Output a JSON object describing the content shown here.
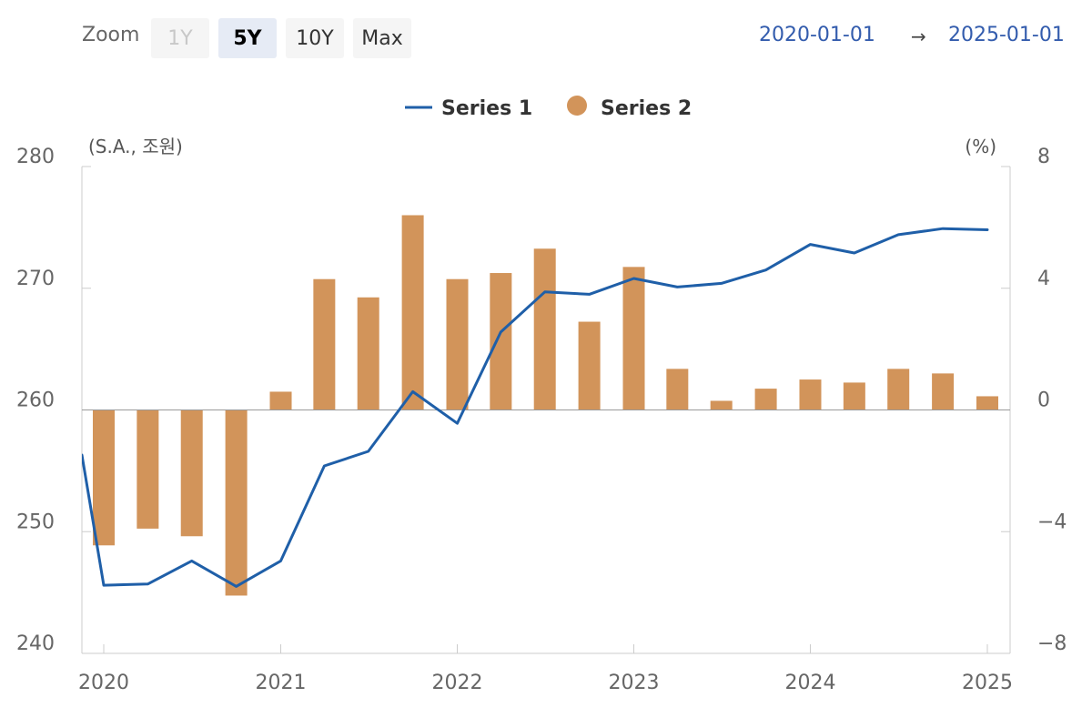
{
  "toolbar": {
    "zoom_label": "Zoom",
    "buttons": [
      {
        "label": "1Y",
        "state": "disabled"
      },
      {
        "label": "5Y",
        "state": "selected"
      },
      {
        "label": "10Y",
        "state": "normal"
      },
      {
        "label": "Max",
        "state": "normal"
      }
    ],
    "range_from": "2020-01-01",
    "range_arrow": "→",
    "range_to": "2025-01-01"
  },
  "chart_data": {
    "type": "bar",
    "title": "",
    "legend": {
      "placement": "top-center",
      "items": [
        {
          "name": "Series 1",
          "symbol": "line"
        },
        {
          "name": "Series 2",
          "symbol": "circle"
        }
      ]
    },
    "left_axis": {
      "unit_label": "(S.A., 조원)",
      "min": 240,
      "max": 280,
      "ticks": [
        "240",
        "250",
        "260",
        "270",
        "280"
      ]
    },
    "right_axis": {
      "unit_label": "(%)",
      "min": -8,
      "max": 8,
      "ticks": [
        "−8",
        "−4",
        "0",
        "4",
        "8"
      ]
    },
    "x_axis": {
      "min": "2020-01-01",
      "max": "2025-01-01",
      "ticks": [
        "2020",
        "2021",
        "2022",
        "2023",
        "2024",
        "2025"
      ]
    },
    "colors": {
      "series1": "#1f5fa8",
      "series2": "#d2945a",
      "axis": "#cccccc",
      "zero_line": "#999999"
    },
    "series": [
      {
        "name": "Series 1",
        "axis": "left",
        "render": "line",
        "x": [
          "2019-10-01",
          "2020-01-01",
          "2020-04-01",
          "2020-07-01",
          "2020-10-01",
          "2021-01-01",
          "2021-04-01",
          "2021-07-01",
          "2021-10-01",
          "2022-01-01",
          "2022-04-01",
          "2022-07-01",
          "2022-10-01",
          "2023-01-01",
          "2023-04-01",
          "2023-07-01",
          "2023-10-01",
          "2024-01-01",
          "2024-04-01",
          "2024-07-01",
          "2024-10-01",
          "2025-01-01"
        ],
        "values": [
          256.3,
          245.6,
          245.7,
          247.6,
          245.5,
          247.6,
          255.4,
          256.6,
          261.5,
          258.9,
          266.4,
          269.7,
          269.5,
          270.8,
          270.1,
          270.4,
          271.5,
          273.6,
          272.9,
          274.4,
          274.9,
          274.8
        ]
      },
      {
        "name": "Series 2",
        "axis": "right",
        "render": "bar",
        "x": [
          "2020-01-01",
          "2020-04-01",
          "2020-07-01",
          "2020-10-01",
          "2021-01-01",
          "2021-04-01",
          "2021-07-01",
          "2021-10-01",
          "2022-01-01",
          "2022-04-01",
          "2022-07-01",
          "2022-10-01",
          "2023-01-01",
          "2023-04-01",
          "2023-07-01",
          "2023-10-01",
          "2024-01-01",
          "2024-04-01",
          "2024-07-01",
          "2024-10-01",
          "2025-01-01"
        ],
        "values": [
          -4.45,
          -3.9,
          -4.15,
          -6.1,
          0.6,
          4.3,
          3.7,
          6.4,
          4.3,
          4.5,
          5.3,
          2.9,
          4.7,
          1.35,
          0.3,
          0.7,
          1.0,
          0.9,
          1.35,
          1.2,
          0.45
        ]
      }
    ]
  }
}
